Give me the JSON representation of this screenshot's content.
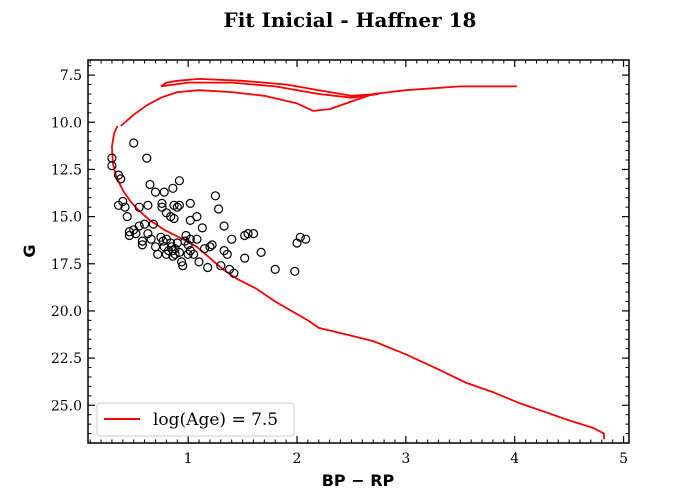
{
  "chart_data": {
    "type": "scatter",
    "title": "Fit Inicial - Haffner 18",
    "xlabel": "BP − RP",
    "ylabel": "G",
    "xlim": [
      0.08,
      5.05
    ],
    "ylim": [
      27.0,
      6.7
    ],
    "y_inverted": true,
    "xticks": [
      1,
      2,
      3,
      4,
      5
    ],
    "yticks": [
      7.5,
      10.0,
      12.5,
      15.0,
      17.5,
      20.0,
      22.5,
      25.0
    ],
    "ytick_labels": [
      "7.5",
      "10.0",
      "12.5",
      "15.0",
      "17.5",
      "20.0",
      "22.5",
      "25.0"
    ],
    "grid": false,
    "legend": {
      "placement": "lower-left",
      "entries": [
        "log(Age) = 7.5"
      ]
    },
    "colors": {
      "isochrone": "#ff0000",
      "points": "#000000"
    },
    "points": [
      [
        0.3,
        11.9
      ],
      [
        0.3,
        12.3
      ],
      [
        0.36,
        12.8
      ],
      [
        0.38,
        13.0
      ],
      [
        0.5,
        11.1
      ],
      [
        0.62,
        11.9
      ],
      [
        0.65,
        13.3
      ],
      [
        0.7,
        13.7
      ],
      [
        0.78,
        13.7
      ],
      [
        0.86,
        13.5
      ],
      [
        0.92,
        13.1
      ],
      [
        1.25,
        13.9
      ],
      [
        0.36,
        14.4
      ],
      [
        0.4,
        14.2
      ],
      [
        0.42,
        14.5
      ],
      [
        0.44,
        15.0
      ],
      [
        0.55,
        14.5
      ],
      [
        0.63,
        14.4
      ],
      [
        0.76,
        14.3
      ],
      [
        0.76,
        14.5
      ],
      [
        0.8,
        14.8
      ],
      [
        0.84,
        15.0
      ],
      [
        0.87,
        14.4
      ],
      [
        0.87,
        15.1
      ],
      [
        0.9,
        14.5
      ],
      [
        0.92,
        14.4
      ],
      [
        1.02,
        14.3
      ],
      [
        1.08,
        15.0
      ],
      [
        1.02,
        15.2
      ],
      [
        1.28,
        14.6
      ],
      [
        0.55,
        15.5
      ],
      [
        0.6,
        15.4
      ],
      [
        0.63,
        15.9
      ],
      [
        0.68,
        15.4
      ],
      [
        0.46,
        15.8
      ],
      [
        0.46,
        16.0
      ],
      [
        0.5,
        15.7
      ],
      [
        0.52,
        15.9
      ],
      [
        0.58,
        16.3
      ],
      [
        0.58,
        16.5
      ],
      [
        0.66,
        16.2
      ],
      [
        0.7,
        16.6
      ],
      [
        0.75,
        16.1
      ],
      [
        0.77,
        16.3
      ],
      [
        0.78,
        16.6
      ],
      [
        0.8,
        16.2
      ],
      [
        0.82,
        16.8
      ],
      [
        0.84,
        16.4
      ],
      [
        0.85,
        16.6
      ],
      [
        0.86,
        16.8
      ],
      [
        0.86,
        17.1
      ],
      [
        0.88,
        16.7
      ],
      [
        0.88,
        17.0
      ],
      [
        0.9,
        16.4
      ],
      [
        0.92,
        16.9
      ],
      [
        0.94,
        17.4
      ],
      [
        0.95,
        17.6
      ],
      [
        0.97,
        16.3
      ],
      [
        1.0,
        16.5
      ],
      [
        1.0,
        17.0
      ],
      [
        1.02,
        16.2
      ],
      [
        1.02,
        16.8
      ],
      [
        1.05,
        17.0
      ],
      [
        1.08,
        16.2
      ],
      [
        1.1,
        17.4
      ],
      [
        1.13,
        15.6
      ],
      [
        1.15,
        16.7
      ],
      [
        1.18,
        17.7
      ],
      [
        1.2,
        16.6
      ],
      [
        1.22,
        16.5
      ],
      [
        1.3,
        17.6
      ],
      [
        1.33,
        16.8
      ],
      [
        1.33,
        15.5
      ],
      [
        1.36,
        17.0
      ],
      [
        1.38,
        17.8
      ],
      [
        1.4,
        16.2
      ],
      [
        1.42,
        18.0
      ],
      [
        1.52,
        17.2
      ],
      [
        1.52,
        16.0
      ],
      [
        1.55,
        15.9
      ],
      [
        1.6,
        15.9
      ],
      [
        1.67,
        16.9
      ],
      [
        1.8,
        17.8
      ],
      [
        1.98,
        17.9
      ],
      [
        2.0,
        16.4
      ],
      [
        2.03,
        16.1
      ],
      [
        2.08,
        16.2
      ],
      [
        0.98,
        16.0
      ],
      [
        0.72,
        17.0
      ],
      [
        0.8,
        17.0
      ]
    ],
    "isochrone": [
      [
        0.35,
        10.2
      ],
      [
        0.32,
        10.6
      ],
      [
        0.3,
        11.3
      ],
      [
        0.31,
        12.2
      ],
      [
        0.34,
        12.9
      ],
      [
        0.4,
        13.6
      ],
      [
        0.47,
        14.2
      ],
      [
        0.55,
        14.7
      ],
      [
        0.65,
        15.2
      ],
      [
        0.78,
        15.7
      ],
      [
        0.95,
        16.2
      ],
      [
        1.08,
        16.6
      ],
      [
        1.2,
        17.2
      ],
      [
        1.32,
        17.8
      ],
      [
        1.45,
        18.3
      ],
      [
        1.62,
        18.8
      ],
      [
        1.8,
        19.5
      ],
      [
        1.98,
        20.1
      ],
      [
        2.1,
        20.5
      ],
      [
        2.2,
        20.9
      ],
      [
        2.42,
        21.2
      ],
      [
        2.7,
        21.6
      ],
      [
        3.0,
        22.3
      ],
      [
        3.3,
        23.1
      ],
      [
        3.55,
        23.8
      ],
      [
        3.8,
        24.3
      ],
      [
        4.05,
        24.9
      ],
      [
        4.3,
        25.4
      ],
      [
        4.5,
        25.8
      ],
      [
        4.72,
        26.2
      ],
      [
        4.82,
        26.5
      ],
      [
        4.82,
        26.8
      ]
    ],
    "isochrone_upper": [
      [
        0.38,
        10.2
      ],
      [
        0.5,
        9.6
      ],
      [
        0.62,
        9.1
      ],
      [
        0.75,
        8.7
      ],
      [
        0.9,
        8.4
      ],
      [
        1.1,
        8.3
      ],
      [
        1.4,
        8.4
      ],
      [
        1.7,
        8.6
      ],
      [
        2.0,
        9.0
      ],
      [
        2.15,
        9.4
      ],
      [
        2.3,
        9.3
      ],
      [
        2.5,
        8.9
      ],
      [
        2.7,
        8.5
      ],
      [
        3.0,
        8.3
      ],
      [
        3.5,
        8.1
      ],
      [
        4.02,
        8.1
      ]
    ],
    "isochrone_loop": [
      [
        0.75,
        8.1
      ],
      [
        0.8,
        7.9
      ],
      [
        0.9,
        7.8
      ],
      [
        1.1,
        7.7
      ],
      [
        1.5,
        7.8
      ],
      [
        1.9,
        8.0
      ],
      [
        2.2,
        8.3
      ],
      [
        2.5,
        8.6
      ],
      [
        2.75,
        8.5
      ],
      [
        2.5,
        8.7
      ],
      [
        2.2,
        8.5
      ],
      [
        1.8,
        8.1
      ],
      [
        1.4,
        7.9
      ],
      [
        1.0,
        7.9
      ],
      [
        0.75,
        8.1
      ]
    ]
  }
}
